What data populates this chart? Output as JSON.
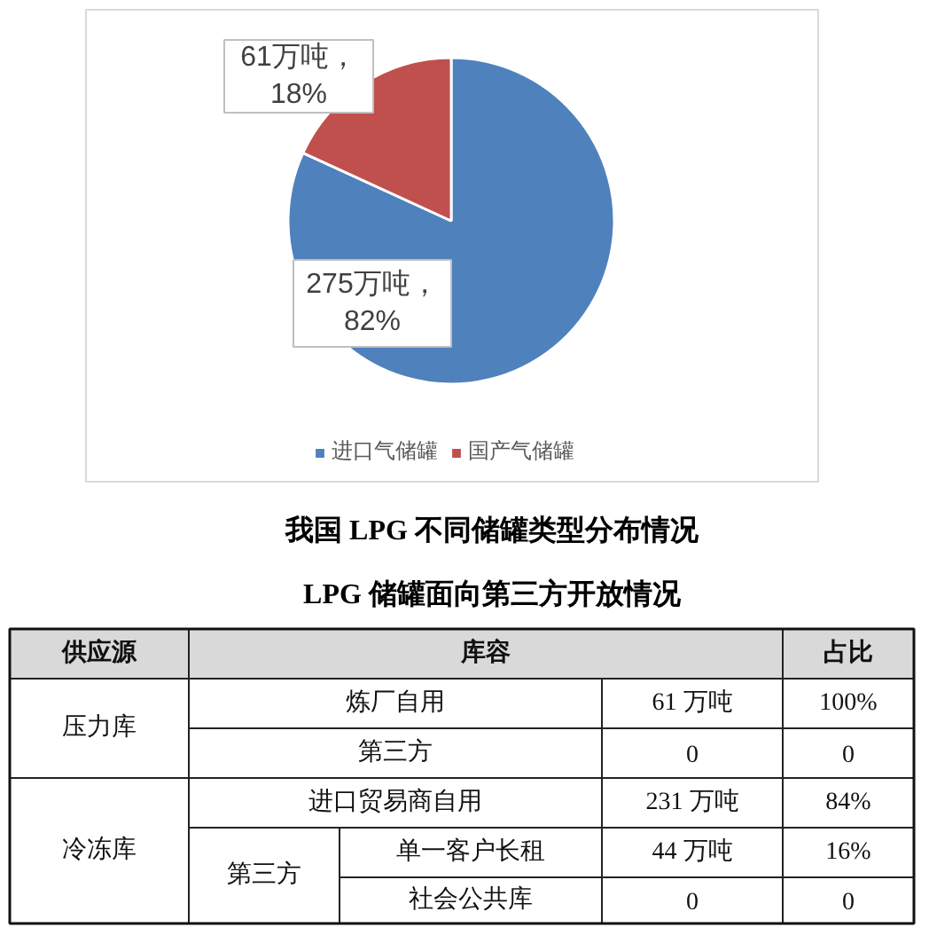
{
  "chart_data": [
    {
      "type": "pie",
      "title": "我国 LPG 不同储罐类型分布情况",
      "categories": [
        "进口气储罐",
        "国产气储罐"
      ],
      "values": [
        275,
        61
      ],
      "colors": [
        "#4f81bd",
        "#c0504d"
      ],
      "value_labels": [
        "275万吨，\n82%",
        "61万吨，\n18%"
      ],
      "legend": "bottom"
    },
    {
      "type": "other",
      "title": "LPG 储罐面向第三方开放情况",
      "annotations": [
        "供应源",
        "库容",
        "占比",
        "压力库",
        "炼厂自用",
        "61 万吨",
        "100%",
        "第三方",
        "0",
        "0",
        "冷冻库",
        "进口贸易商自用",
        "231 万吨",
        "84%",
        "第三方",
        "单一客户长租",
        "44 万吨",
        "16%",
        "社会公共库",
        "0",
        "0"
      ]
    }
  ]
}
